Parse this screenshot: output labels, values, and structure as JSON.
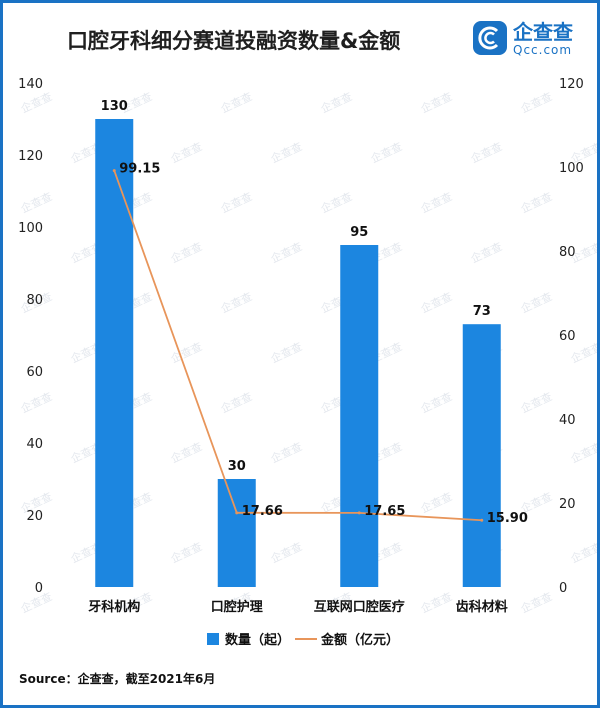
{
  "logo": {
    "name_cn": "企查查",
    "name_en": "Qcc.com"
  },
  "watermark_text": "企查查",
  "source_text": "Source：企查查，截至2021年6月",
  "colors": {
    "bar": "#1c86e0",
    "line": "#e8955a",
    "frame": "#1a72c4",
    "logo": "#1a72c4"
  },
  "chart_data": {
    "type": "bar",
    "title": "口腔牙科细分赛道投融资数量&金额",
    "categories": [
      "牙科机构",
      "口腔护理",
      "互联网口腔医疗",
      "齿科材料"
    ],
    "series": [
      {
        "name": "数量（起）",
        "type": "bar",
        "axis": "left",
        "values": [
          130,
          30,
          95,
          73
        ],
        "labels": [
          "130",
          "30",
          "95",
          "73"
        ]
      },
      {
        "name": "金额（亿元）",
        "type": "line",
        "axis": "right",
        "values": [
          99.15,
          17.66,
          17.65,
          15.9
        ],
        "labels": [
          "99.15",
          "17.66",
          "17.65",
          "15.90"
        ]
      }
    ],
    "y_left": {
      "min": 0,
      "max": 140,
      "ticks": [
        "0",
        "20",
        "40",
        "60",
        "80",
        "100",
        "120",
        "140"
      ]
    },
    "y_right": {
      "min": 0,
      "max": 120,
      "ticks": [
        "0",
        "20",
        "40",
        "60",
        "80",
        "100",
        "120"
      ]
    },
    "grid": false,
    "legend": "bottom-center"
  }
}
